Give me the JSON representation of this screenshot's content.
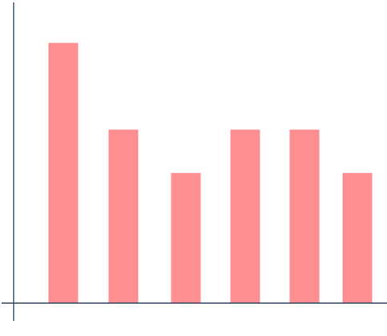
{
  "chart_data": {
    "type": "bar",
    "categories": [
      "",
      "",
      "",
      "",
      "",
      ""
    ],
    "values": [
      6,
      4,
      3,
      4,
      4,
      3
    ],
    "title": "",
    "xlabel": "",
    "ylabel": "",
    "ylim": [
      0,
      6.6
    ],
    "grid": false,
    "colors": {
      "bar": "#ff8e92",
      "axis": "#3b4f6e"
    }
  }
}
